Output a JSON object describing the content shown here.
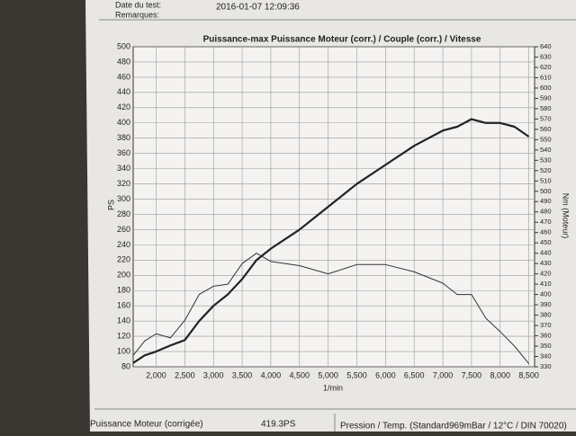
{
  "header": {
    "date_label": "Date du test:",
    "date": "2016-01-07 12:09:36",
    "remarks_label": "Remarques:"
  },
  "footer": {
    "power_label": "Puissance Moteur (corrigée)",
    "power_value": "419.3PS",
    "pressure": "Pression / Temp. (Standard969mBar / 12°C / DIN 70020)"
  },
  "chart_data": {
    "type": "line",
    "title": "Puissance-max Puissance Moteur (corr.) / Couple (corr.) / Vitesse",
    "x_label": "1/min",
    "y_label": "PS",
    "y2_label": "Nm (Moteur)",
    "x": [
      1600,
      1800,
      2000,
      2250,
      2500,
      2750,
      3000,
      3250,
      3500,
      3750,
      4000,
      4500,
      5000,
      5500,
      6000,
      6500,
      7000,
      7250,
      7500,
      7750,
      8000,
      8250,
      8500
    ],
    "series": [
      {
        "name": "Puissance Moteur (corr.)",
        "color": "#222222",
        "values": [
          85,
          95,
          100,
          108,
          115,
          140,
          160,
          175,
          195,
          220,
          235,
          260,
          290,
          320,
          345,
          370,
          390,
          395,
          405,
          400,
          400,
          395,
          382
        ]
      },
      {
        "name": "Couple (corr.)",
        "color": "#333333",
        "axis": "y2",
        "values": [
          341,
          355,
          362,
          358,
          375,
          400,
          408,
          410,
          430,
          440,
          432,
          428,
          420,
          429,
          429,
          422,
          411,
          400,
          400,
          377,
          364,
          350,
          333
        ]
      }
    ],
    "xlim": [
      1600,
      8600
    ],
    "xticks": [
      {
        "value": 2000,
        "label": "2,000"
      },
      {
        "value": 2500,
        "label": "2,500"
      },
      {
        "value": 3000,
        "label": "3,000"
      },
      {
        "value": 3500,
        "label": "3,500"
      },
      {
        "value": 4000,
        "label": "4,000"
      },
      {
        "value": 4500,
        "label": "4,500"
      },
      {
        "value": 5000,
        "label": "5,000"
      },
      {
        "value": 5500,
        "label": "5,500"
      },
      {
        "value": 6000,
        "label": "6,000"
      },
      {
        "value": 6500,
        "label": "6,500"
      },
      {
        "value": 7000,
        "label": "7,000"
      },
      {
        "value": 7500,
        "label": "7,500"
      },
      {
        "value": 8000,
        "label": "8,000"
      },
      {
        "value": 8500,
        "label": "8,500"
      }
    ],
    "ylim": [
      80,
      500
    ],
    "yticks": [
      80,
      100,
      120,
      140,
      160,
      180,
      200,
      220,
      240,
      260,
      280,
      300,
      320,
      340,
      360,
      380,
      400,
      420,
      440,
      460,
      480,
      500
    ],
    "y2lim": [
      330,
      640
    ],
    "y2ticks": [
      330,
      340,
      350,
      360,
      370,
      380,
      390,
      400,
      410,
      420,
      430,
      440,
      450,
      460,
      470,
      480,
      490,
      500,
      510,
      520,
      530,
      540,
      550,
      560,
      570,
      580,
      590,
      600,
      610,
      620,
      630,
      640
    ],
    "grid": true
  }
}
